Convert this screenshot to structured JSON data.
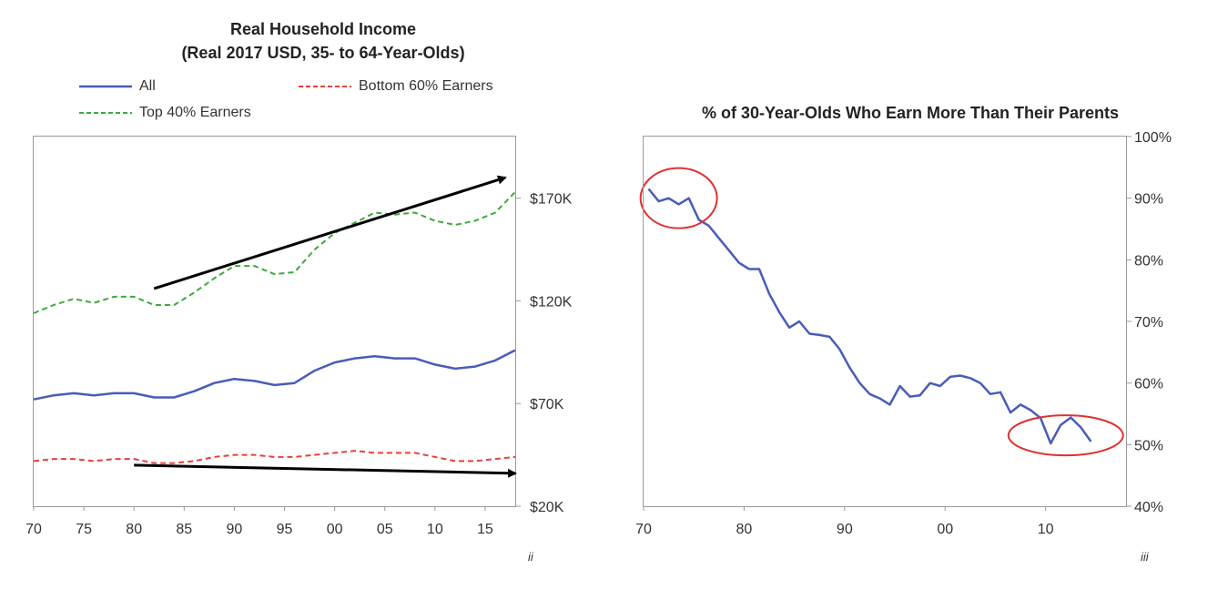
{
  "chart_data": [
    {
      "type": "line",
      "title_line1": "Real Household Income",
      "title_line2": "(Real 2017 USD, 35- to 64-Year-Olds)",
      "footnote": "ii",
      "xlim": [
        1970,
        2018
      ],
      "ylim": [
        20,
        200
      ],
      "xticks": [
        "70",
        "75",
        "80",
        "85",
        "90",
        "95",
        "00",
        "05",
        "10",
        "15"
      ],
      "xtick_values": [
        1970,
        1975,
        1980,
        1985,
        1990,
        1995,
        2000,
        2005,
        2010,
        2015
      ],
      "yticks": [
        "$20K",
        "$70K",
        "$120K",
        "$170K"
      ],
      "ytick_values": [
        20,
        70,
        120,
        170
      ],
      "legend": [
        {
          "name": "All",
          "color": "#4a5cb8",
          "dash": "solid"
        },
        {
          "name": "Bottom 60% Earners",
          "color": "#e8403a",
          "dash": "dashed"
        },
        {
          "name": "Top 40% Earners",
          "color": "#3aab3a",
          "dash": "dashed"
        }
      ],
      "series": [
        {
          "name": "All",
          "color": "#4a5cb8",
          "dash": "solid",
          "x": [
            1970,
            1972,
            1974,
            1976,
            1978,
            1980,
            1982,
            1984,
            1986,
            1988,
            1990,
            1992,
            1994,
            1996,
            1998,
            2000,
            2002,
            2004,
            2006,
            2008,
            2010,
            2012,
            2014,
            2016,
            2018
          ],
          "values": [
            72,
            74,
            75,
            74,
            75,
            75,
            73,
            73,
            76,
            80,
            82,
            81,
            79,
            80,
            86,
            90,
            92,
            93,
            92,
            92,
            89,
            87,
            88,
            91,
            96
          ]
        },
        {
          "name": "Bottom 60% Earners",
          "color": "#e8403a",
          "dash": "dashed",
          "x": [
            1970,
            1972,
            1974,
            1976,
            1978,
            1980,
            1982,
            1984,
            1986,
            1988,
            1990,
            1992,
            1994,
            1996,
            1998,
            2000,
            2002,
            2004,
            2006,
            2008,
            2010,
            2012,
            2014,
            2016,
            2018
          ],
          "values": [
            42,
            43,
            43,
            42,
            43,
            43,
            41,
            41,
            42,
            44,
            45,
            45,
            44,
            44,
            45,
            46,
            47,
            46,
            46,
            46,
            44,
            42,
            42,
            43,
            44
          ]
        },
        {
          "name": "Top 40% Earners",
          "color": "#3aab3a",
          "dash": "dashed",
          "x": [
            1970,
            1972,
            1974,
            1976,
            1978,
            1980,
            1982,
            1984,
            1986,
            1988,
            1990,
            1992,
            1994,
            1996,
            1998,
            2000,
            2002,
            2004,
            2006,
            2008,
            2010,
            2012,
            2014,
            2016,
            2018
          ],
          "values": [
            114,
            118,
            121,
            119,
            122,
            122,
            118,
            118,
            124,
            131,
            137,
            137,
            133,
            134,
            145,
            153,
            158,
            163,
            162,
            163,
            159,
            157,
            159,
            163,
            173
          ]
        }
      ],
      "annotations": [
        {
          "type": "arrow",
          "from": [
            1982,
            126
          ],
          "to": [
            2017,
            180
          ],
          "color": "#000000"
        },
        {
          "type": "arrow",
          "from": [
            1980,
            40
          ],
          "to": [
            2018,
            36
          ],
          "color": "#000000"
        }
      ]
    },
    {
      "type": "line",
      "title": "% of 30-Year-Olds Who Earn More Than Their Parents",
      "footnote": "iii",
      "xlim": [
        1970,
        2018
      ],
      "ylim": [
        40,
        100
      ],
      "xticks": [
        "70",
        "80",
        "90",
        "00",
        "10"
      ],
      "xtick_values": [
        1970,
        1980,
        1990,
        2000,
        2010
      ],
      "yticks": [
        "40%",
        "50%",
        "60%",
        "70%",
        "80%",
        "90%",
        "100%"
      ],
      "ytick_values": [
        40,
        50,
        60,
        70,
        80,
        90,
        100
      ],
      "series": [
        {
          "name": "",
          "color": "#4a5cb8",
          "dash": "solid",
          "x": [
            1970.5,
            1971.5,
            1972.5,
            1973.5,
            1974.5,
            1975.5,
            1976.5,
            1977.5,
            1978.5,
            1979.5,
            1980.5,
            1981.5,
            1982.5,
            1983.5,
            1984.5,
            1985.5,
            1986.5,
            1987.5,
            1988.5,
            1989.5,
            1990.5,
            1991.5,
            1992.5,
            1993.5,
            1994.5,
            1995.5,
            1996.5,
            1997.5,
            1998.5,
            1999.5,
            2000.5,
            2001.5,
            2002.5,
            2003.5,
            2004.5,
            2005.5,
            2006.5,
            2007.5,
            2008.5,
            2009.5,
            2010.5,
            2011.5,
            2012.5,
            2013.5,
            2014.5
          ],
          "values": [
            91.5,
            89.5,
            90,
            89,
            90,
            86.5,
            85.5,
            83.5,
            81.5,
            79.5,
            78.5,
            78.5,
            74.5,
            71.5,
            69,
            70,
            68,
            67.8,
            67.5,
            65.5,
            62.5,
            60,
            58.2,
            57.5,
            56.5,
            59.5,
            57.8,
            58,
            60,
            59.5,
            61,
            61.2,
            60.8,
            60,
            58.2,
            58.5,
            55.2,
            56.5,
            55.6,
            54.3,
            50.2,
            53.2,
            54.4,
            52.8,
            50.5
          ]
        }
      ],
      "annotations": [
        {
          "type": "circle",
          "center": [
            1973.5,
            90
          ],
          "color": "#e03030"
        },
        {
          "type": "circle",
          "center": [
            2012,
            51.5
          ],
          "color": "#e03030"
        }
      ]
    }
  ]
}
